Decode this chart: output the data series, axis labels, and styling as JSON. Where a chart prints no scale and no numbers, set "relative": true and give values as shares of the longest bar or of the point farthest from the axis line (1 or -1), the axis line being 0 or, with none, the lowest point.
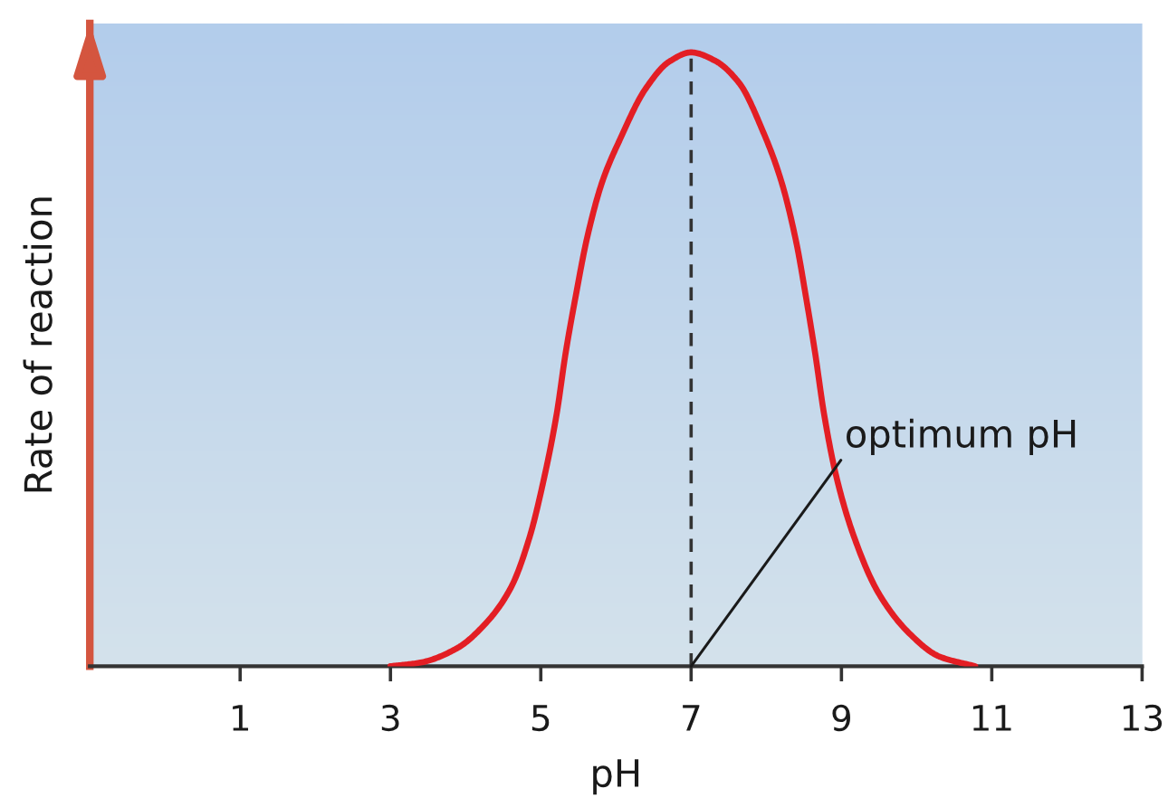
{
  "chart_data": {
    "type": "line",
    "xlabel": "pH",
    "ylabel": "Rate of reaction",
    "relative": true,
    "x": [
      3.0,
      3.4,
      3.88,
      4.29,
      4.61,
      4.85,
      5.05,
      5.21,
      5.33,
      5.46,
      5.62,
      5.82,
      6.06,
      6.39,
      6.71,
      7.0,
      7.31,
      7.64,
      7.96,
      8.2,
      8.4,
      8.53,
      8.65,
      8.77,
      8.93,
      9.17,
      9.49,
      9.9,
      10.3,
      10.78
    ],
    "series": [
      {
        "color": "#e31e24",
        "values": [
          0,
          0.006,
          0.029,
          0.073,
          0.13,
          0.21,
          0.31,
          0.41,
          0.51,
          0.6,
          0.7,
          0.79,
          0.86,
          0.94,
          0.985,
          1,
          0.987,
          0.95,
          0.87,
          0.79,
          0.69,
          0.6,
          0.51,
          0.41,
          0.31,
          0.21,
          0.12,
          0.054,
          0.016,
          0
        ]
      }
    ],
    "xlim": [
      -1,
      13
    ],
    "xticks": [
      1,
      3,
      5,
      7,
      9,
      11,
      13
    ],
    "ref_lines": [
      {
        "axis": "x",
        "value": 7,
        "color": "#333333",
        "line_style": "dashed"
      }
    ],
    "annotations": [
      {
        "text": "optimum pH",
        "x": 7,
        "y": 0
      }
    ],
    "marker": "none",
    "line_style": "solid"
  }
}
